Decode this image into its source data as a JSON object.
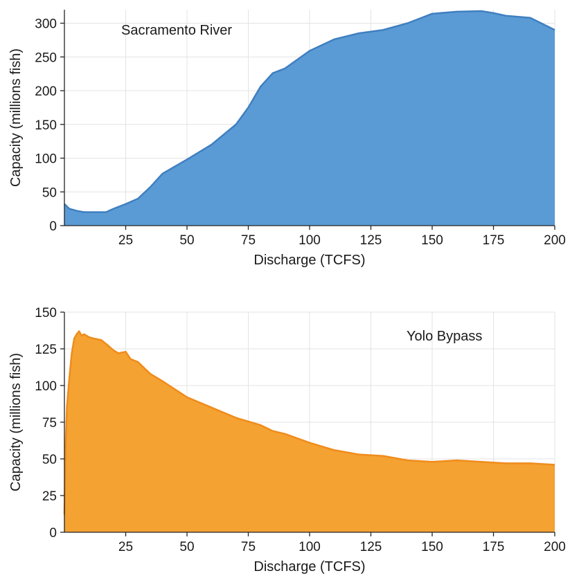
{
  "chart_data": [
    {
      "type": "area",
      "title": "",
      "annotation": "Sacramento River",
      "xlabel": "Discharge (TCFS)",
      "ylabel": "Capacity (millions fish)",
      "xlim": [
        0,
        200
      ],
      "ylim": [
        0,
        320
      ],
      "xticks": [
        25,
        50,
        75,
        100,
        125,
        150,
        175,
        200
      ],
      "yticks": [
        0,
        50,
        100,
        150,
        200,
        250,
        300
      ],
      "grid": true,
      "color": "#5b9bd5",
      "line_color": "#3f7fc0",
      "series": [
        {
          "x": [
            0,
            2,
            5,
            8,
            12,
            17,
            20,
            25,
            30,
            35,
            40,
            50,
            60,
            70,
            75,
            80,
            85,
            90,
            100,
            110,
            120,
            130,
            140,
            150,
            160,
            170,
            175,
            180,
            190,
            200
          ],
          "values": [
            32,
            25,
            22,
            20,
            20,
            20,
            25,
            32,
            40,
            57,
            77,
            98,
            120,
            150,
            175,
            206,
            226,
            233,
            259,
            276,
            285,
            290,
            300,
            314,
            317,
            318,
            315,
            311,
            308,
            290
          ]
        }
      ]
    },
    {
      "type": "area",
      "title": "",
      "annotation": "Yolo Bypass",
      "xlabel": "Discharge (TCFS)",
      "ylabel": "Capacity (millions fish)",
      "xlim": [
        0,
        200
      ],
      "ylim": [
        0,
        150
      ],
      "xticks": [
        25,
        50,
        75,
        100,
        125,
        150,
        175,
        200
      ],
      "yticks": [
        0,
        25,
        50,
        75,
        100,
        125,
        150
      ],
      "grid": true,
      "color": "#f4a232",
      "line_color": "#ef8c1c",
      "series": [
        {
          "x": [
            0,
            0.5,
            1,
            2,
            3,
            4,
            5,
            6,
            7,
            8,
            10,
            12,
            15,
            18,
            20,
            22,
            25,
            27,
            30,
            35,
            40,
            50,
            60,
            70,
            80,
            85,
            90,
            100,
            110,
            120,
            130,
            140,
            150,
            160,
            170,
            180,
            190,
            200
          ],
          "values": [
            12,
            60,
            85,
            105,
            122,
            132,
            135,
            137,
            134,
            135,
            133,
            132,
            131,
            127,
            124,
            122,
            123,
            118,
            116,
            108,
            103,
            92,
            85,
            78,
            73,
            69,
            67,
            61,
            56,
            53,
            52,
            49,
            48,
            49,
            48,
            47,
            47,
            46
          ]
        }
      ]
    }
  ]
}
